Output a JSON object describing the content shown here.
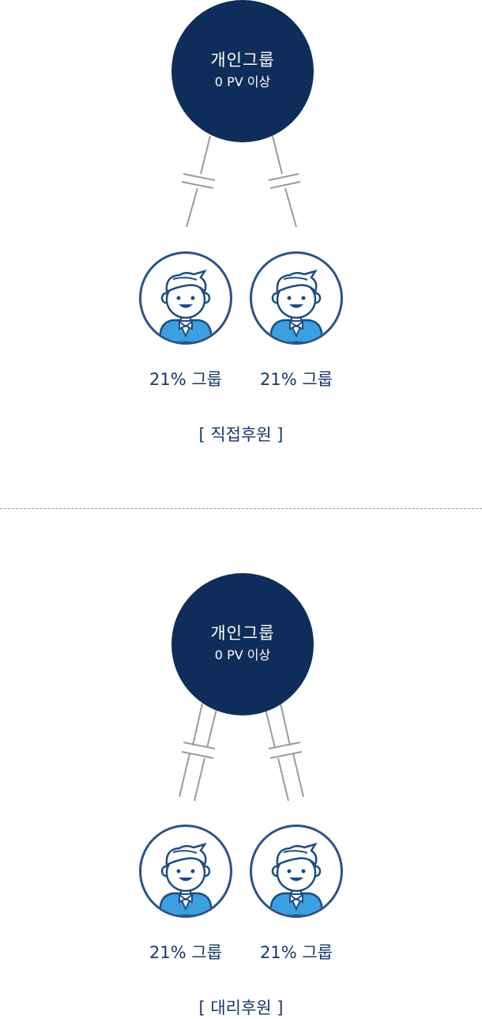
{
  "diagrams": [
    {
      "main": {
        "title": "개인그룹",
        "subtitle": "0 PV 이상"
      },
      "members": [
        {
          "label": "21% 그룹",
          "icon": "person-icon"
        },
        {
          "label": "21% 그룹",
          "icon": "person-icon"
        }
      ],
      "caption": "[ 직접후원 ]",
      "connector_style": "single-line"
    },
    {
      "main": {
        "title": "개인그룹",
        "subtitle": "0 PV 이상"
      },
      "members": [
        {
          "label": "21% 그룹",
          "icon": "person-icon"
        },
        {
          "label": "21% 그룹",
          "icon": "person-icon"
        }
      ],
      "caption": "[ 대리후원 ]",
      "connector_style": "double-line"
    }
  ],
  "colors": {
    "main_node": "#0e2d5a",
    "text": "#143868",
    "member_border": "#2c5486",
    "connector": "#9b9b9b",
    "shirt": "#3aa0e0"
  }
}
